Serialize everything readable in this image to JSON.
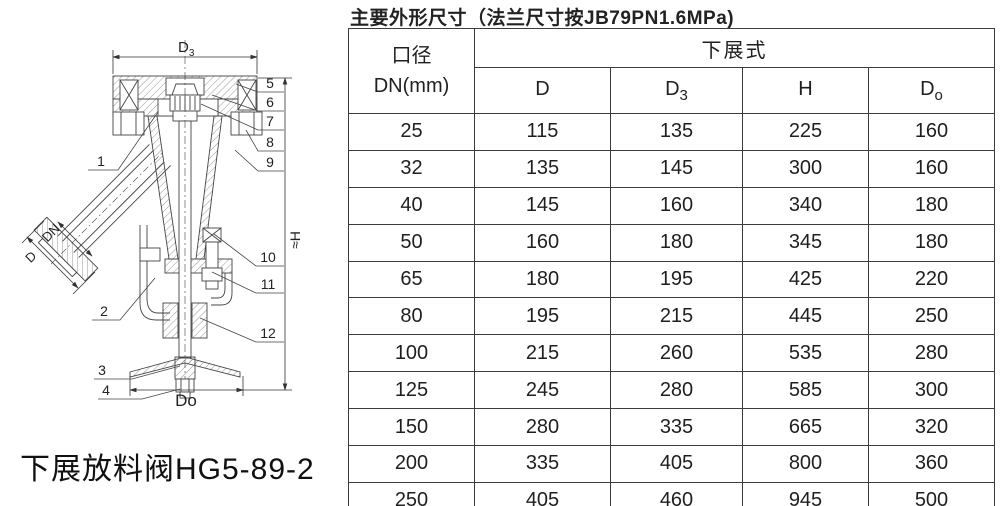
{
  "title": "主要外形尺寸（法兰尺寸按JB79PN1.6MPa)",
  "table": {
    "col1_header_line1": "口径",
    "col1_header_line2": "DN(mm)",
    "group_header": "下展式",
    "columns": [
      {
        "main": "D",
        "sub": ""
      },
      {
        "main": "D",
        "sub": "3"
      },
      {
        "main": "H",
        "sub": ""
      },
      {
        "main": "D",
        "sub": "o"
      }
    ],
    "rows": [
      [
        "25",
        "115",
        "135",
        "225",
        "160"
      ],
      [
        "32",
        "135",
        "145",
        "300",
        "160"
      ],
      [
        "40",
        "145",
        "160",
        "340",
        "180"
      ],
      [
        "50",
        "160",
        "180",
        "345",
        "180"
      ],
      [
        "65",
        "180",
        "195",
        "425",
        "220"
      ],
      [
        "80",
        "195",
        "215",
        "445",
        "250"
      ],
      [
        "100",
        "215",
        "260",
        "535",
        "280"
      ],
      [
        "125",
        "245",
        "280",
        "585",
        "300"
      ],
      [
        "150",
        "280",
        "335",
        "665",
        "320"
      ],
      [
        "200",
        "335",
        "405",
        "800",
        "360"
      ],
      [
        "250",
        "405",
        "460",
        "945",
        "500"
      ]
    ]
  },
  "drawing": {
    "caption": "下展放料阀HG5-89-2",
    "dims": {
      "top_main": "D",
      "top_sub": "3",
      "inlet_bore": "DN",
      "inlet_flange": "D",
      "bottom": "Do",
      "height": "≈H"
    },
    "parts": [
      "1",
      "2",
      "3",
      "4",
      "5",
      "6",
      "7",
      "8",
      "9",
      "10",
      "11",
      "12"
    ]
  }
}
